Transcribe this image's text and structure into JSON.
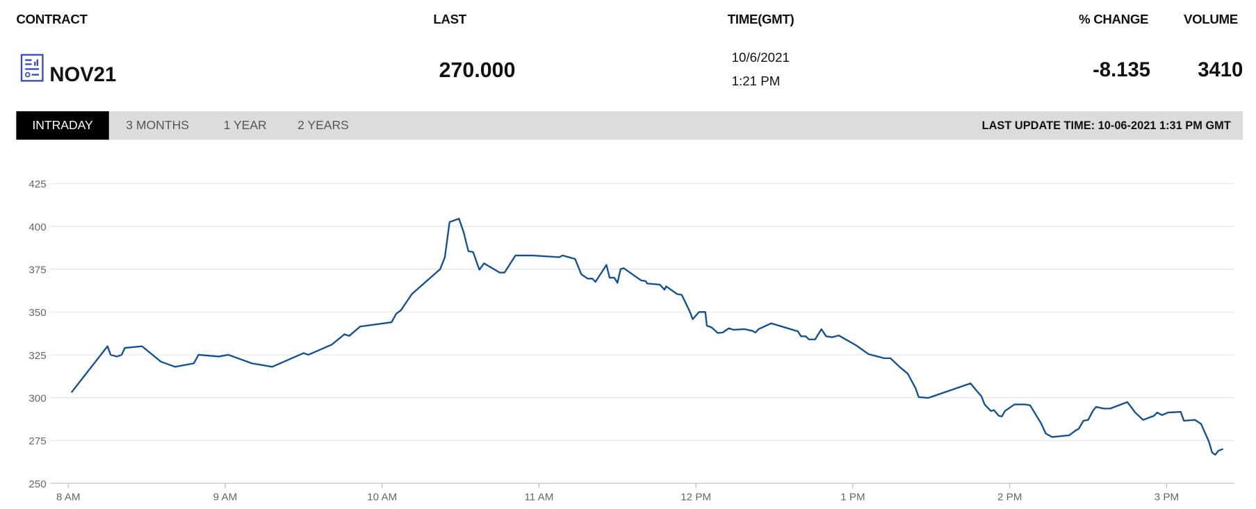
{
  "header": {
    "columns": [
      "CONTRACT",
      "LAST",
      "TIME(GMT)",
      "% CHANGE",
      "VOLUME"
    ],
    "contract": "NOV21",
    "last": "270.000",
    "date": "10/6/2021",
    "time": "1:21 PM",
    "change": "-8.135",
    "volume": "3410"
  },
  "tabs": [
    "INTRADAY",
    "3 MONTHS",
    "1 YEAR",
    "2 YEARS"
  ],
  "last_update": "LAST UPDATE TIME: 10-06-2021 1:31 PM GMT",
  "chart_data": {
    "type": "line",
    "grid": true,
    "xlim": [
      8,
      15.43
    ],
    "xticks": [
      {
        "value": 8,
        "label": "8 AM"
      },
      {
        "value": 9,
        "label": "9 AM"
      },
      {
        "value": 10,
        "label": "10 AM"
      },
      {
        "value": 11,
        "label": "11 AM"
      },
      {
        "value": 12,
        "label": "12 PM"
      },
      {
        "value": 13,
        "label": "1 PM"
      },
      {
        "value": 14,
        "label": "2 PM"
      },
      {
        "value": 15,
        "label": "3 PM"
      }
    ],
    "ylim": [
      250,
      425
    ],
    "yticks": [
      250,
      275,
      300,
      325,
      350,
      375,
      400,
      425
    ],
    "series": [
      {
        "color": "#0b4f9e",
        "x": [
          8.02,
          8.25,
          8.27,
          8.31,
          8.34,
          8.36,
          8.47,
          8.59,
          8.68,
          8.8,
          8.83,
          8.96,
          9.02,
          9.17,
          9.3,
          9.5,
          9.53,
          9.68,
          9.76,
          9.79,
          9.86,
          10.06,
          10.09,
          10.12,
          10.19,
          10.37,
          10.4,
          10.43,
          10.49,
          10.52,
          10.55,
          10.58,
          10.62,
          10.65,
          10.75,
          10.78,
          10.85,
          10.96,
          11.13,
          11.15,
          11.23,
          11.27,
          11.31,
          11.34,
          11.36,
          11.43,
          11.45,
          11.48,
          11.5,
          11.52,
          11.54,
          11.65,
          11.68,
          11.69,
          11.77,
          11.8,
          11.81,
          11.88,
          11.91,
          11.96,
          11.98,
          12.02,
          12.06,
          12.07,
          12.1,
          12.14,
          12.17,
          12.21,
          12.24,
          12.31,
          12.36,
          12.38,
          12.4,
          12.48,
          12.65,
          12.67,
          12.7,
          12.72,
          12.76,
          12.8,
          12.83,
          12.87,
          12.91,
          13.02,
          13.1,
          13.2,
          13.24,
          13.3,
          13.35,
          13.4,
          13.42,
          13.48,
          13.75,
          13.82,
          13.84,
          13.88,
          13.9,
          13.93,
          13.95,
          13.97,
          14.03,
          14.1,
          14.13,
          14.2,
          14.23,
          14.27,
          14.38,
          14.42,
          14.44,
          14.47,
          14.5,
          14.53,
          14.55,
          14.6,
          14.64,
          14.75,
          14.8,
          14.85,
          14.92,
          14.94,
          14.97,
          15.01,
          15.09,
          15.11,
          15.18,
          15.22,
          15.27,
          15.29,
          15.31,
          15.33,
          15.36
        ],
        "values": [
          303,
          330,
          325,
          324,
          325,
          329,
          330,
          321,
          318,
          320,
          325,
          324,
          325,
          320,
          318,
          326,
          325,
          331,
          337,
          336,
          341.5,
          344,
          349,
          351,
          360.5,
          375,
          382,
          402.5,
          404.5,
          396.5,
          385.5,
          385,
          374.7,
          378.4,
          373,
          373,
          383,
          383,
          382,
          383,
          381,
          372,
          369.5,
          369.5,
          367.6,
          377.5,
          370,
          370,
          367,
          375,
          375.6,
          368.5,
          368,
          366.6,
          366,
          363,
          365,
          360.5,
          360,
          350.5,
          345.8,
          350,
          350,
          342,
          341,
          337.7,
          338,
          340.5,
          339.6,
          340,
          339,
          338,
          340,
          343.4,
          338.7,
          335.8,
          335.8,
          334,
          334,
          340,
          335.8,
          335.3,
          336.3,
          330.6,
          325.4,
          323,
          323,
          317.8,
          314,
          305.5,
          300.3,
          299.8,
          308.3,
          300.7,
          296,
          292.2,
          292.7,
          289.4,
          289,
          292.2,
          296,
          296,
          295.5,
          285,
          279,
          277,
          278,
          280.8,
          281.8,
          286.5,
          287,
          292.2,
          294.6,
          293.6,
          293.6,
          297.4,
          291.3,
          287,
          289.4,
          291.3,
          289.8,
          291.3,
          291.7,
          286.5,
          287,
          284.6,
          274.2,
          268,
          266.6,
          269,
          270
        ]
      }
    ]
  }
}
